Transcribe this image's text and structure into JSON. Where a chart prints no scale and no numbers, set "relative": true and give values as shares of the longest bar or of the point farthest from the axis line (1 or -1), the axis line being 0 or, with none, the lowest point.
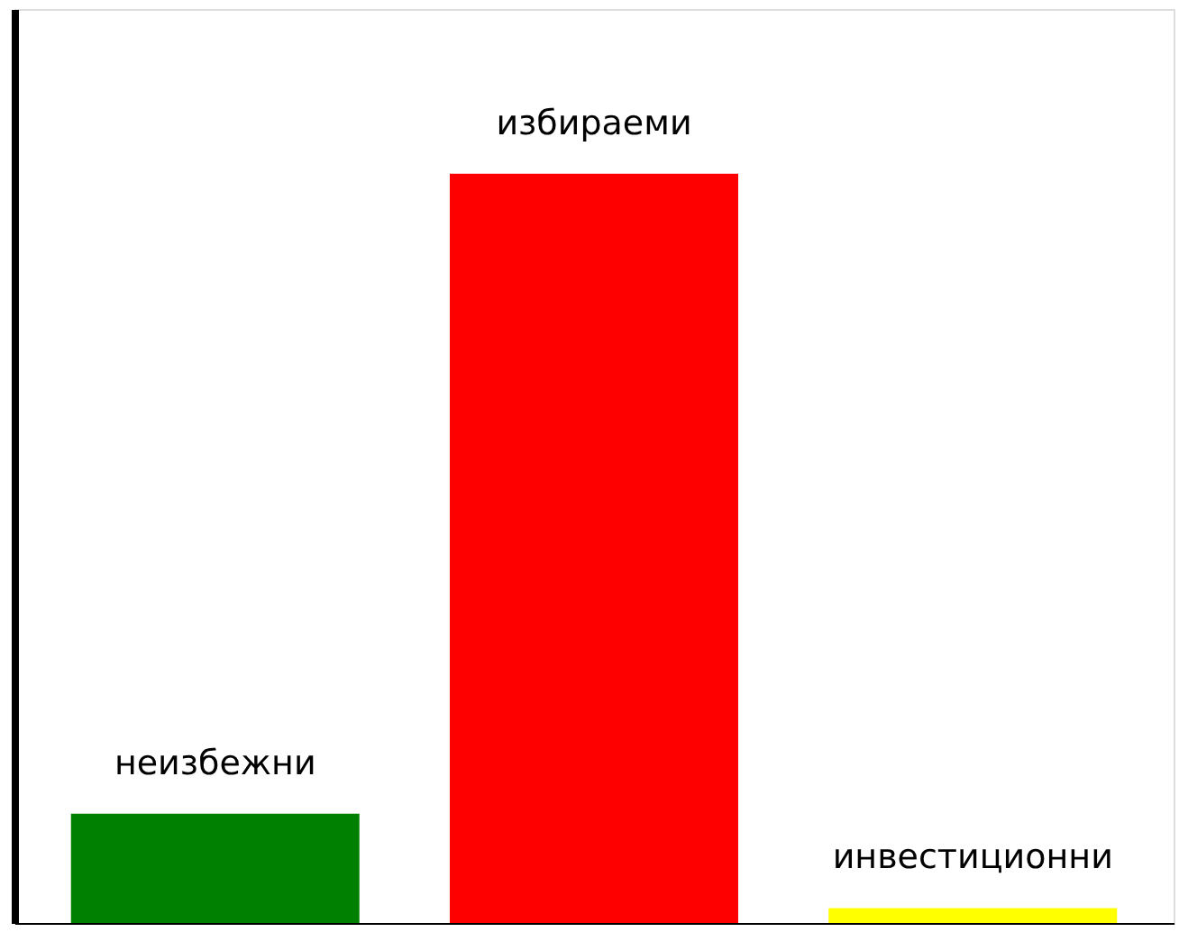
{
  "chart_data": {
    "type": "bar",
    "relative": true,
    "categories": [
      "неизбежни",
      "избираеми",
      "инвестиционни"
    ],
    "values": [
      0.146,
      1,
      0.02
    ],
    "colors": [
      "#008000",
      "#ff0000",
      "#ffff00"
    ],
    "grid": false
  }
}
